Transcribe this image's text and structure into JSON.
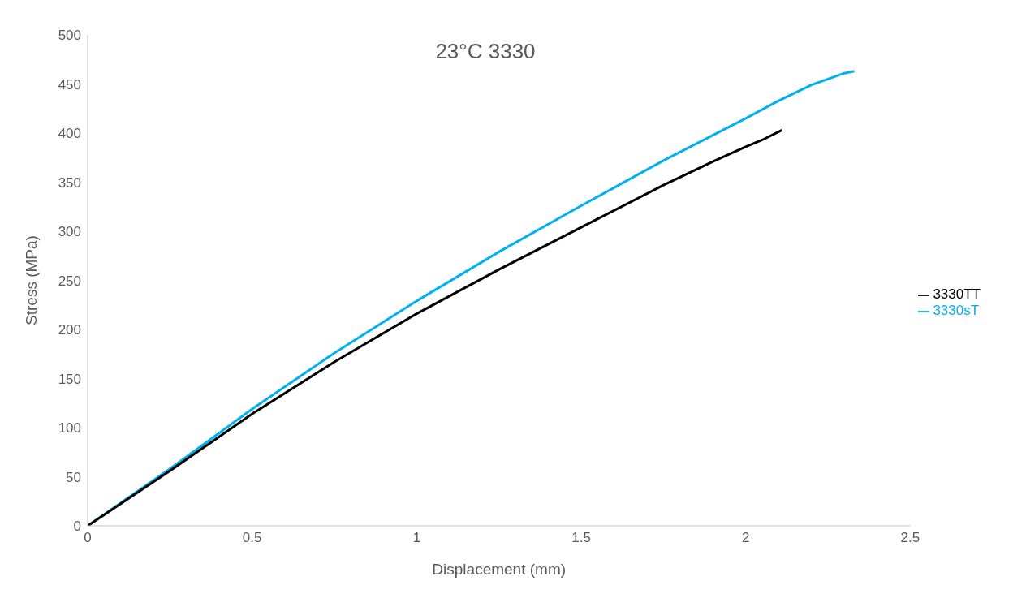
{
  "chart_data": {
    "type": "line",
    "title": "23°C 3330",
    "xlabel": "Displacement (mm)",
    "ylabel": "Stress (MPa)",
    "xlim": [
      0,
      2.5
    ],
    "xticks": [
      0,
      0.5,
      1,
      1.5,
      2,
      2.5
    ],
    "ylim": [
      0,
      500
    ],
    "yticks": [
      0,
      50,
      100,
      150,
      200,
      250,
      300,
      350,
      400,
      450,
      500
    ],
    "grid": false,
    "legend": "right",
    "marker": "none",
    "line_style": "solid",
    "series": [
      {
        "name": "3330sT",
        "color": "#00b0f0",
        "x": [
          0,
          0.25,
          0.5,
          0.75,
          1,
          1.25,
          1.5,
          1.75,
          2,
          2.1,
          2.2,
          2.25,
          2.3,
          2.33
        ],
        "values": [
          0,
          58,
          119,
          176,
          229,
          279,
          326,
          372,
          415,
          433,
          449,
          455,
          461,
          463
        ]
      },
      {
        "name": "3330TT",
        "color": "#000000",
        "x": [
          0,
          0.25,
          0.5,
          0.75,
          1,
          1.25,
          1.5,
          1.75,
          1.9,
          2,
          2.05,
          2.11
        ],
        "values": [
          0,
          56,
          114,
          167,
          216,
          261,
          304,
          347,
          371,
          386,
          393,
          403
        ]
      }
    ]
  }
}
